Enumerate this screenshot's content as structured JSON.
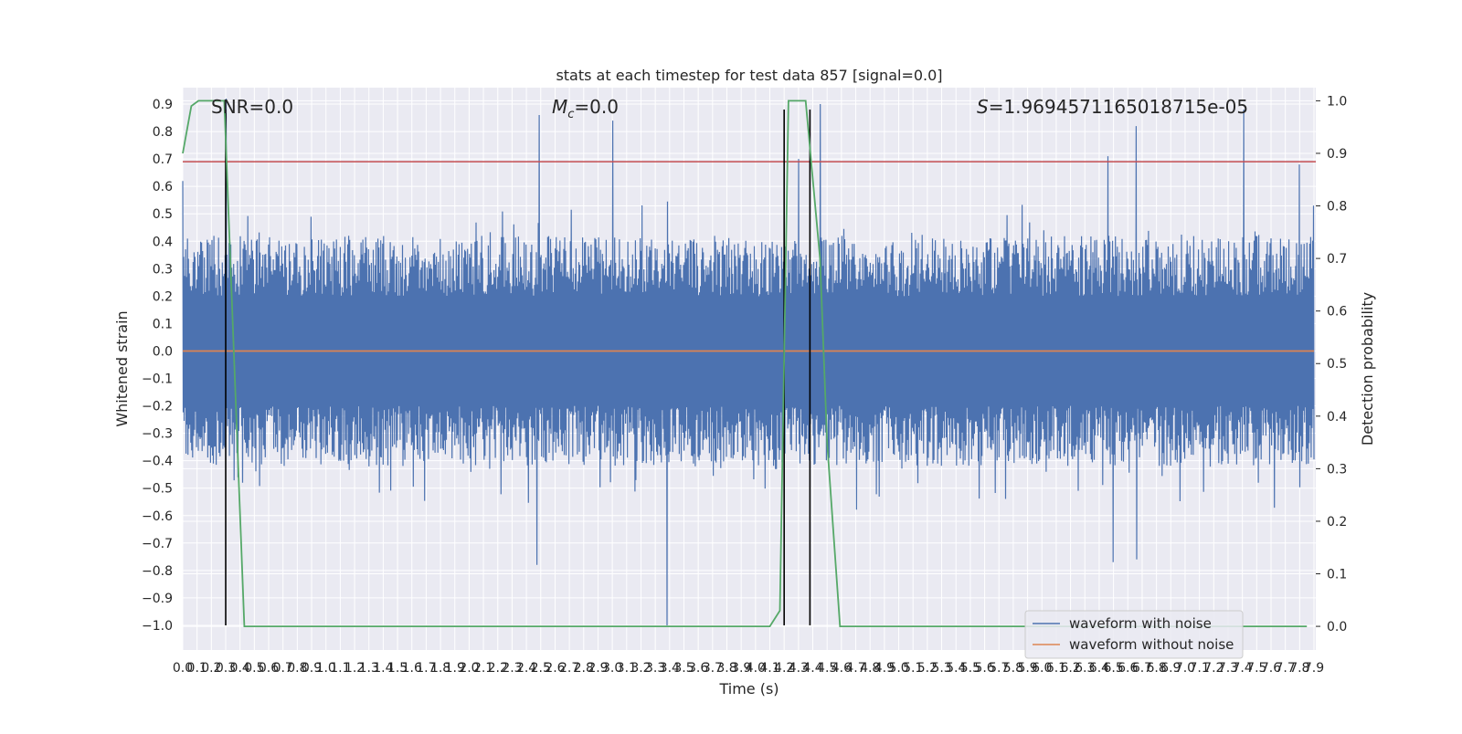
{
  "chart_data": {
    "type": "line",
    "title": "stats at each timestep for test data 857 [signal=0.0]",
    "xlabel": "Time (s)",
    "ylabel_left": "Whitened strain",
    "ylabel_right": "Detection probability",
    "xlim": [
      0,
      7.9
    ],
    "ylim_left": [
      -1.09,
      0.96
    ],
    "ylim_right": [
      -0.045,
      1.025
    ],
    "x_ticks": [
      "0.0",
      "0.1",
      "0.2",
      "0.3",
      "0.4",
      "0.5",
      "0.6",
      "0.7",
      "0.8",
      "0.9",
      "1.0",
      "1.1",
      "1.2",
      "1.3",
      "1.4",
      "1.5",
      "1.6",
      "1.7",
      "1.8",
      "1.9",
      "2.0",
      "2.1",
      "2.2",
      "2.3",
      "2.4",
      "2.5",
      "2.6",
      "2.7",
      "2.8",
      "2.9",
      "3.0",
      "3.1",
      "3.2",
      "3.3",
      "3.4",
      "3.5",
      "3.6",
      "3.7",
      "3.8",
      "3.9",
      "4.0",
      "4.1",
      "4.2",
      "4.3",
      "4.4",
      "4.5",
      "4.6",
      "4.7",
      "4.8",
      "4.9",
      "5.0",
      "5.1",
      "5.2",
      "5.3",
      "5.4",
      "5.5",
      "5.6",
      "5.7",
      "5.8",
      "5.9",
      "6.0",
      "6.1",
      "6.2",
      "6.3",
      "6.4",
      "6.5",
      "6.6",
      "6.7",
      "6.8",
      "6.9",
      "7.0",
      "7.1",
      "7.2",
      "7.3",
      "7.4",
      "7.5",
      "7.6",
      "7.7",
      "7.8",
      "7.9"
    ],
    "y_ticks_left": [
      "−1.0",
      "−0.9",
      "−0.8",
      "−0.7",
      "−0.6",
      "−0.5",
      "−0.4",
      "−0.3",
      "−0.2",
      "−0.1",
      "0.0",
      "0.1",
      "0.2",
      "0.3",
      "0.4",
      "0.5",
      "0.6",
      "0.7",
      "0.8",
      "0.9"
    ],
    "y_tick_values_left": [
      -1.0,
      -0.9,
      -0.8,
      -0.7,
      -0.6,
      -0.5,
      -0.4,
      -0.3,
      -0.2,
      -0.1,
      0.0,
      0.1,
      0.2,
      0.3,
      0.4,
      0.5,
      0.6,
      0.7,
      0.8,
      0.9
    ],
    "y_ticks_right": [
      "0.0",
      "0.1",
      "0.2",
      "0.3",
      "0.4",
      "0.5",
      "0.6",
      "0.7",
      "0.8",
      "0.9",
      "1.0"
    ],
    "y_tick_values_right": [
      0.0,
      0.1,
      0.2,
      0.3,
      0.4,
      0.5,
      0.6,
      0.7,
      0.8,
      0.9,
      1.0
    ],
    "grid": true,
    "legend_position": "lower-right",
    "series": [
      {
        "name": "waveform with noise",
        "axis": "left",
        "color": "#4c72b0",
        "style": "dense noise trace",
        "typical_envelope": [
          -0.45,
          0.45
        ],
        "peaks": [
          {
            "x": 0.0,
            "y": 0.62
          },
          {
            "x": 0.3,
            "y": 0.92
          },
          {
            "x": 0.42,
            "y": -0.48
          },
          {
            "x": 2.47,
            "y": -0.78
          },
          {
            "x": 2.49,
            "y": 0.86
          },
          {
            "x": 3.0,
            "y": 0.84
          },
          {
            "x": 3.38,
            "y": -1.0
          },
          {
            "x": 4.3,
            "y": 0.7
          },
          {
            "x": 4.45,
            "y": 0.9
          },
          {
            "x": 6.46,
            "y": 0.71
          },
          {
            "x": 6.5,
            "y": -0.77
          },
          {
            "x": 6.66,
            "y": 0.82
          },
          {
            "x": 6.66,
            "y": -0.76
          },
          {
            "x": 7.41,
            "y": 0.88
          },
          {
            "x": 7.8,
            "y": 0.68
          },
          {
            "x": 7.9,
            "y": 0.53
          }
        ]
      },
      {
        "name": "waveform without noise",
        "axis": "left",
        "color": "#dd8452",
        "x": [
          0.0,
          7.9
        ],
        "y": [
          0.0,
          0.0
        ]
      },
      {
        "name": "",
        "axis": "right",
        "color": "#55a868",
        "x": [
          0.0,
          0.06,
          0.11,
          0.29,
          0.43,
          4.1,
          4.17,
          4.23,
          4.35,
          4.45,
          4.5,
          4.59,
          7.85
        ],
        "y": [
          0.9,
          0.99,
          1.0,
          1.0,
          0.0,
          0.0,
          0.03,
          1.0,
          1.0,
          0.7,
          0.35,
          0.0,
          0.0
        ]
      }
    ],
    "threshold_line": {
      "axis": "left",
      "y": 0.69,
      "color": "#c44e52"
    },
    "vertical_markers": {
      "x": [
        0.3,
        4.2,
        4.38
      ],
      "ymin": -1.0,
      "ymax": 0.88,
      "color": "#000000"
    },
    "annotations": [
      {
        "text": "SNR=0.0"
      },
      {
        "text": "M",
        "sub": "c",
        "rest": "=0.0"
      },
      {
        "text": "S",
        "rest": "=1.9694571165018715e-05"
      }
    ]
  }
}
